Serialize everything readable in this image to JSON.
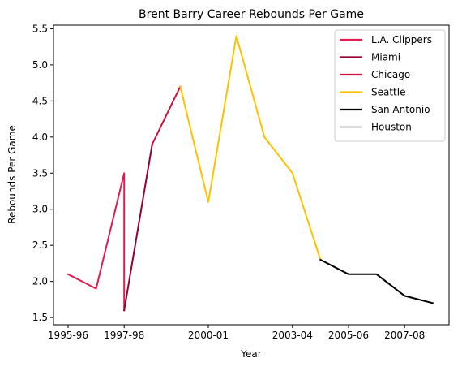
{
  "chart_data": {
    "type": "line",
    "title": "Brent Barry Career Rebounds Per Game",
    "xlabel": "Year",
    "ylabel": "Rebounds Per Game",
    "ylim": [
      1.4,
      5.55
    ],
    "grid": false,
    "legend_position": "top-right",
    "x_tick_labels": [
      "1995-96",
      "1997-98",
      "2000-01",
      "2003-04",
      "2005-06",
      "2007-08"
    ],
    "y_tick_labels": [
      "1.5",
      "2.0",
      "2.5",
      "3.0",
      "3.5",
      "4.0",
      "4.5",
      "5.0",
      "5.5"
    ],
    "series": [
      {
        "name": "L.A. Clippers",
        "color": "#E31C4F",
        "points": [
          {
            "x": "1995-96",
            "y": 2.1
          },
          {
            "x": "1996-97",
            "y": 1.9
          },
          {
            "x": "1997-98",
            "y": 3.5
          },
          {
            "x": "1997-98",
            "y": 1.6
          }
        ]
      },
      {
        "name": "Miami",
        "color": "#98002E",
        "points": [
          {
            "x": "1997-98",
            "y": 1.6
          },
          {
            "x": "1998-99",
            "y": 3.9
          }
        ]
      },
      {
        "name": "Chicago",
        "color": "#CE1141",
        "points": [
          {
            "x": "1998-99",
            "y": 3.9
          },
          {
            "x": "1999-00",
            "y": 4.7
          }
        ]
      },
      {
        "name": "Seattle",
        "color": "#FFC200",
        "points": [
          {
            "x": "1999-00",
            "y": 4.7
          },
          {
            "x": "2000-01",
            "y": 3.1
          },
          {
            "x": "2001-02",
            "y": 5.4
          },
          {
            "x": "2002-03",
            "y": 4.0
          },
          {
            "x": "2003-04",
            "y": 3.5
          },
          {
            "x": "2004-05",
            "y": 2.3
          }
        ]
      },
      {
        "name": "San Antonio",
        "color": "#000000",
        "points": [
          {
            "x": "2004-05",
            "y": 2.3
          },
          {
            "x": "2005-06",
            "y": 2.1
          },
          {
            "x": "2006-07",
            "y": 2.1
          },
          {
            "x": "2007-08",
            "y": 1.8
          },
          {
            "x": "2008-09",
            "y": 1.7
          }
        ]
      },
      {
        "name": "Houston",
        "color": "#C4C4C4",
        "points": []
      }
    ]
  }
}
